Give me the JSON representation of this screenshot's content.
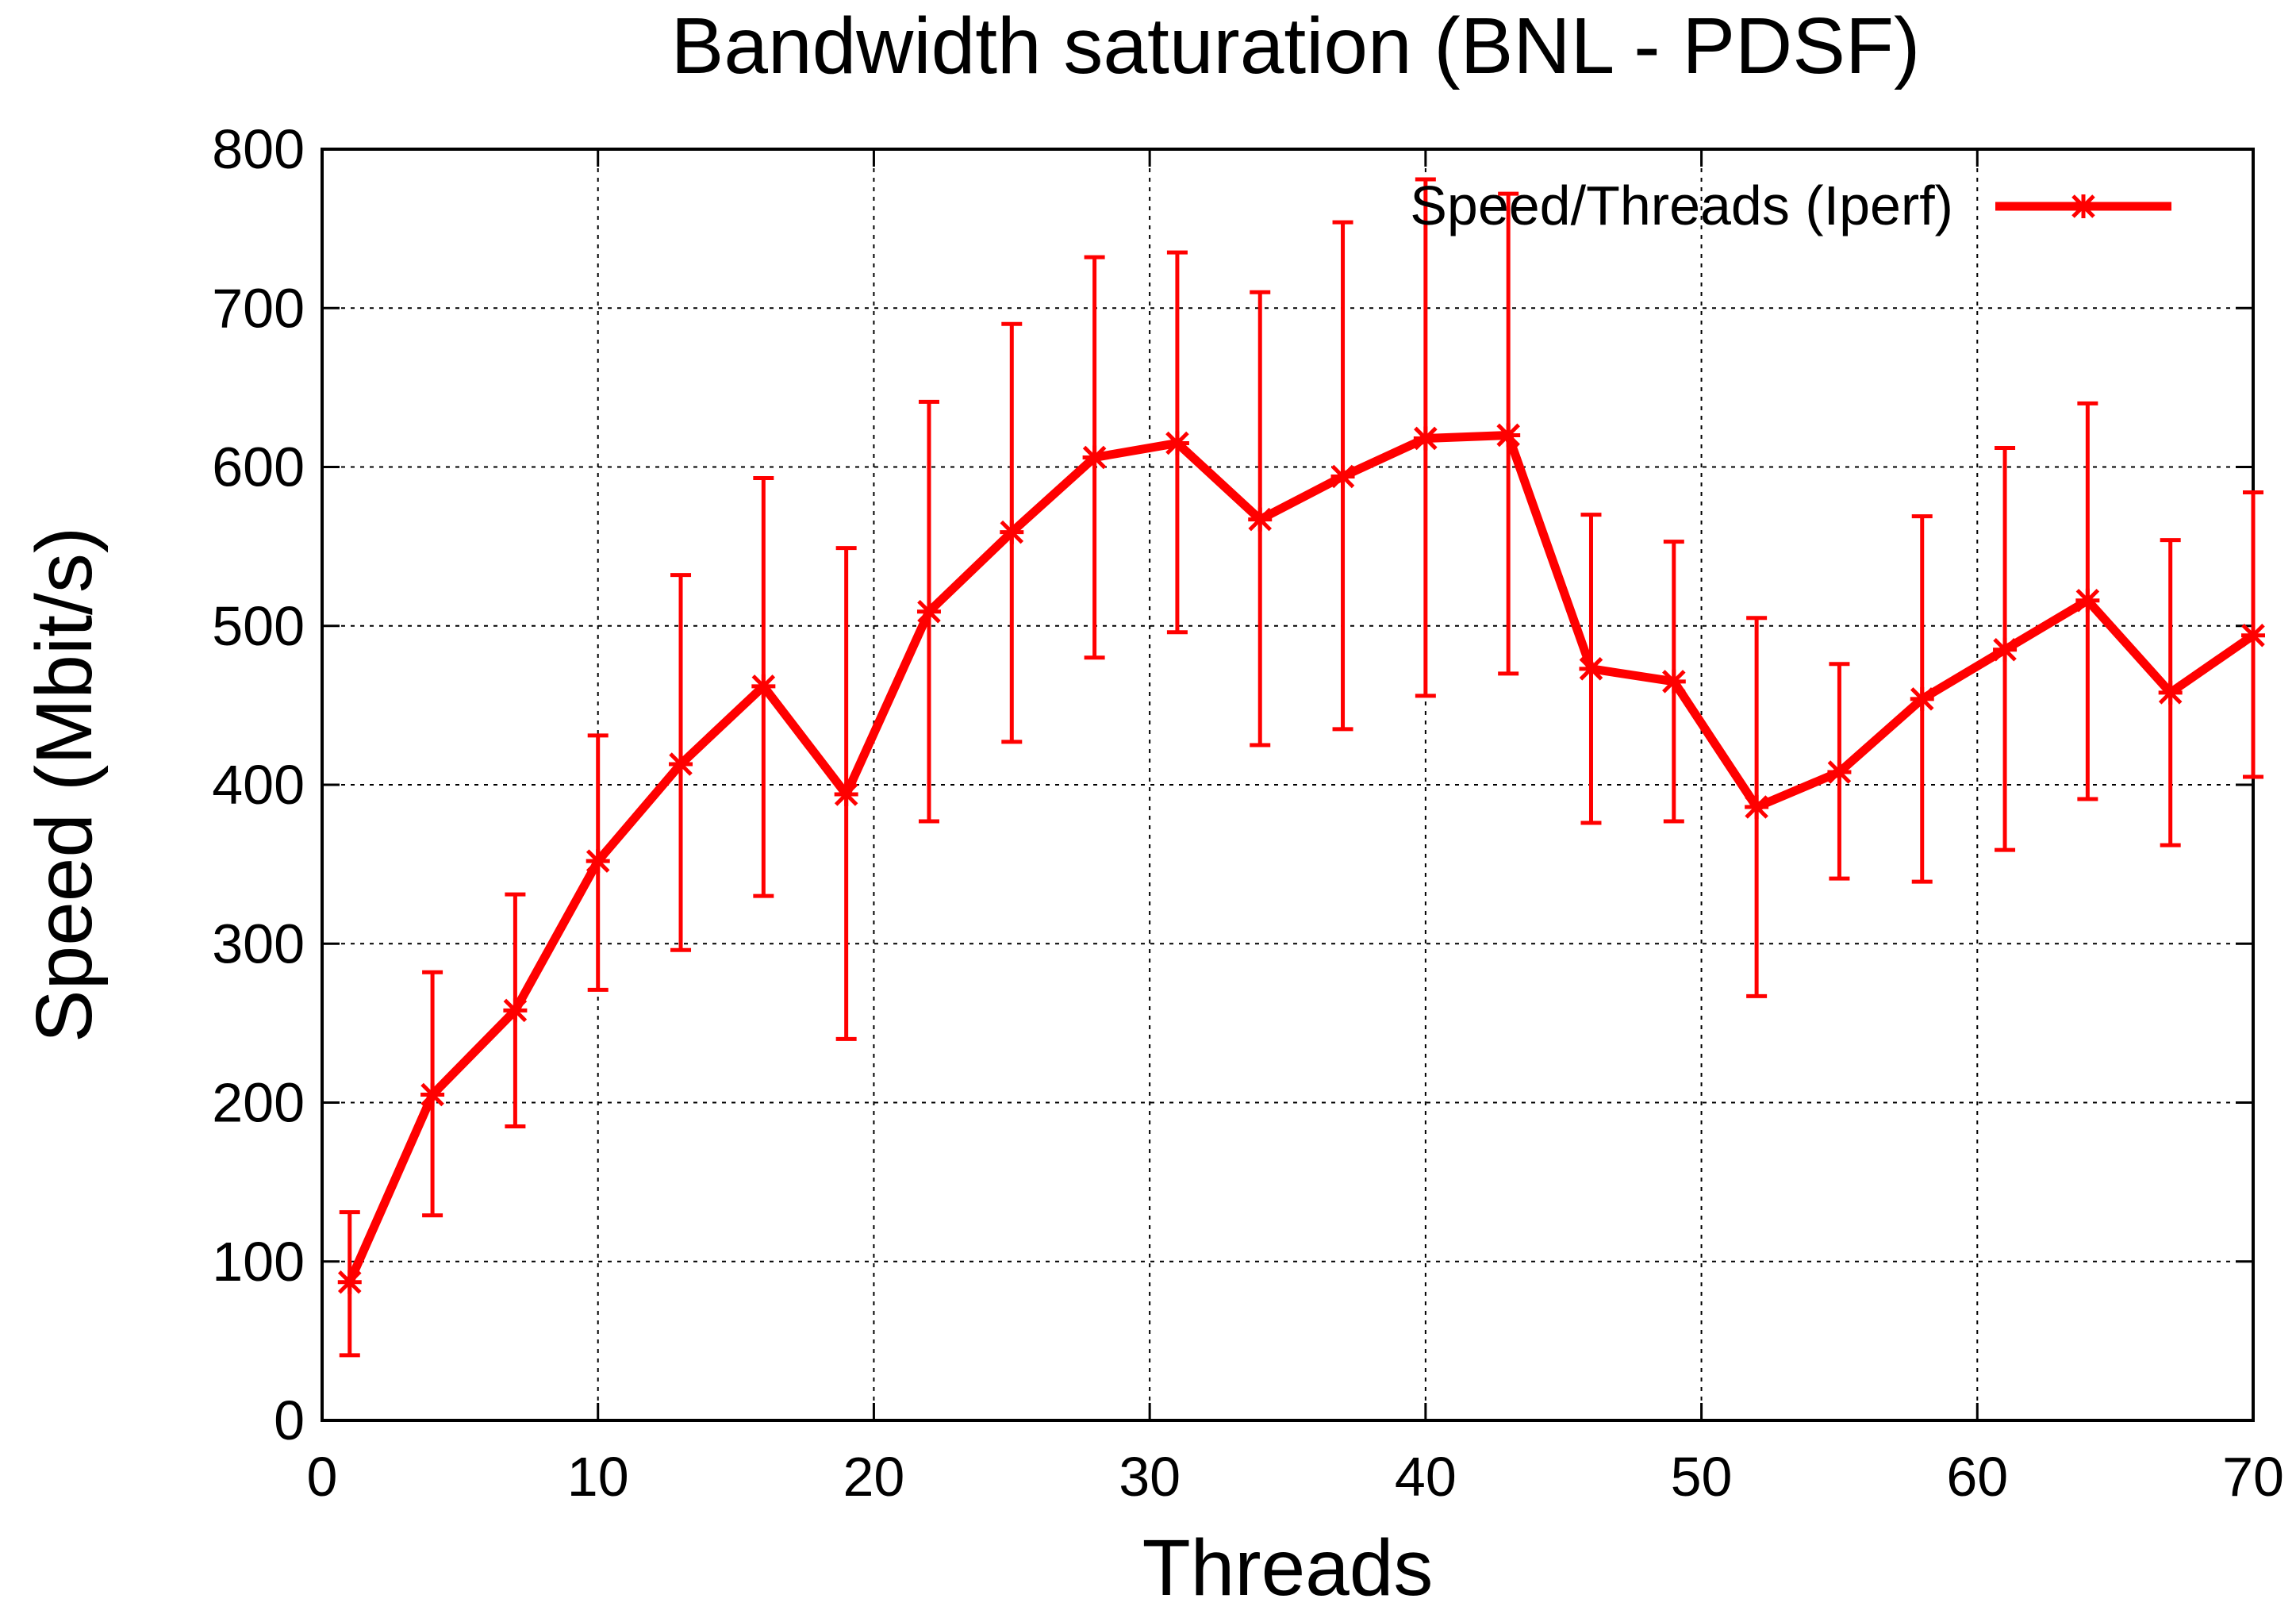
{
  "chart_data": {
    "type": "line",
    "title": "Bandwidth saturation (BNL - PDSF)",
    "xlabel": "Threads",
    "ylabel": "Speed (Mbit/s)",
    "xlim": [
      0,
      70
    ],
    "ylim": [
      0,
      800
    ],
    "x_ticks": [
      "0",
      "10",
      "20",
      "30",
      "40",
      "50",
      "60",
      "70"
    ],
    "y_ticks": [
      "0",
      "100",
      "200",
      "300",
      "400",
      "500",
      "600",
      "700",
      "800"
    ],
    "grid": true,
    "legend_position": "top-right",
    "series": [
      {
        "name": "Speed/Threads (Iperf)",
        "color": "#ff0000",
        "x": [
          1,
          4,
          7,
          10,
          13,
          16,
          19,
          22,
          25,
          28,
          31,
          34,
          37,
          40,
          43,
          46,
          49,
          52,
          55,
          58,
          61,
          64,
          67,
          70
        ],
        "y": [
          87,
          205,
          258,
          352,
          413,
          462,
          394,
          509,
          559,
          606,
          615,
          567,
          594,
          618,
          620,
          473,
          465,
          386,
          408,
          454,
          485,
          516,
          458,
          494
        ],
        "err_low": [
          41,
          129,
          185,
          271,
          296,
          330,
          240,
          377,
          427,
          480,
          496,
          425,
          435,
          456,
          470,
          376,
          377,
          267,
          341,
          339,
          359,
          391,
          362,
          405
        ],
        "err_high": [
          131,
          282,
          331,
          431,
          532,
          593,
          549,
          641,
          690,
          732,
          735,
          710,
          754,
          781,
          772,
          570,
          553,
          505,
          476,
          569,
          612,
          640,
          554,
          584
        ]
      }
    ]
  }
}
